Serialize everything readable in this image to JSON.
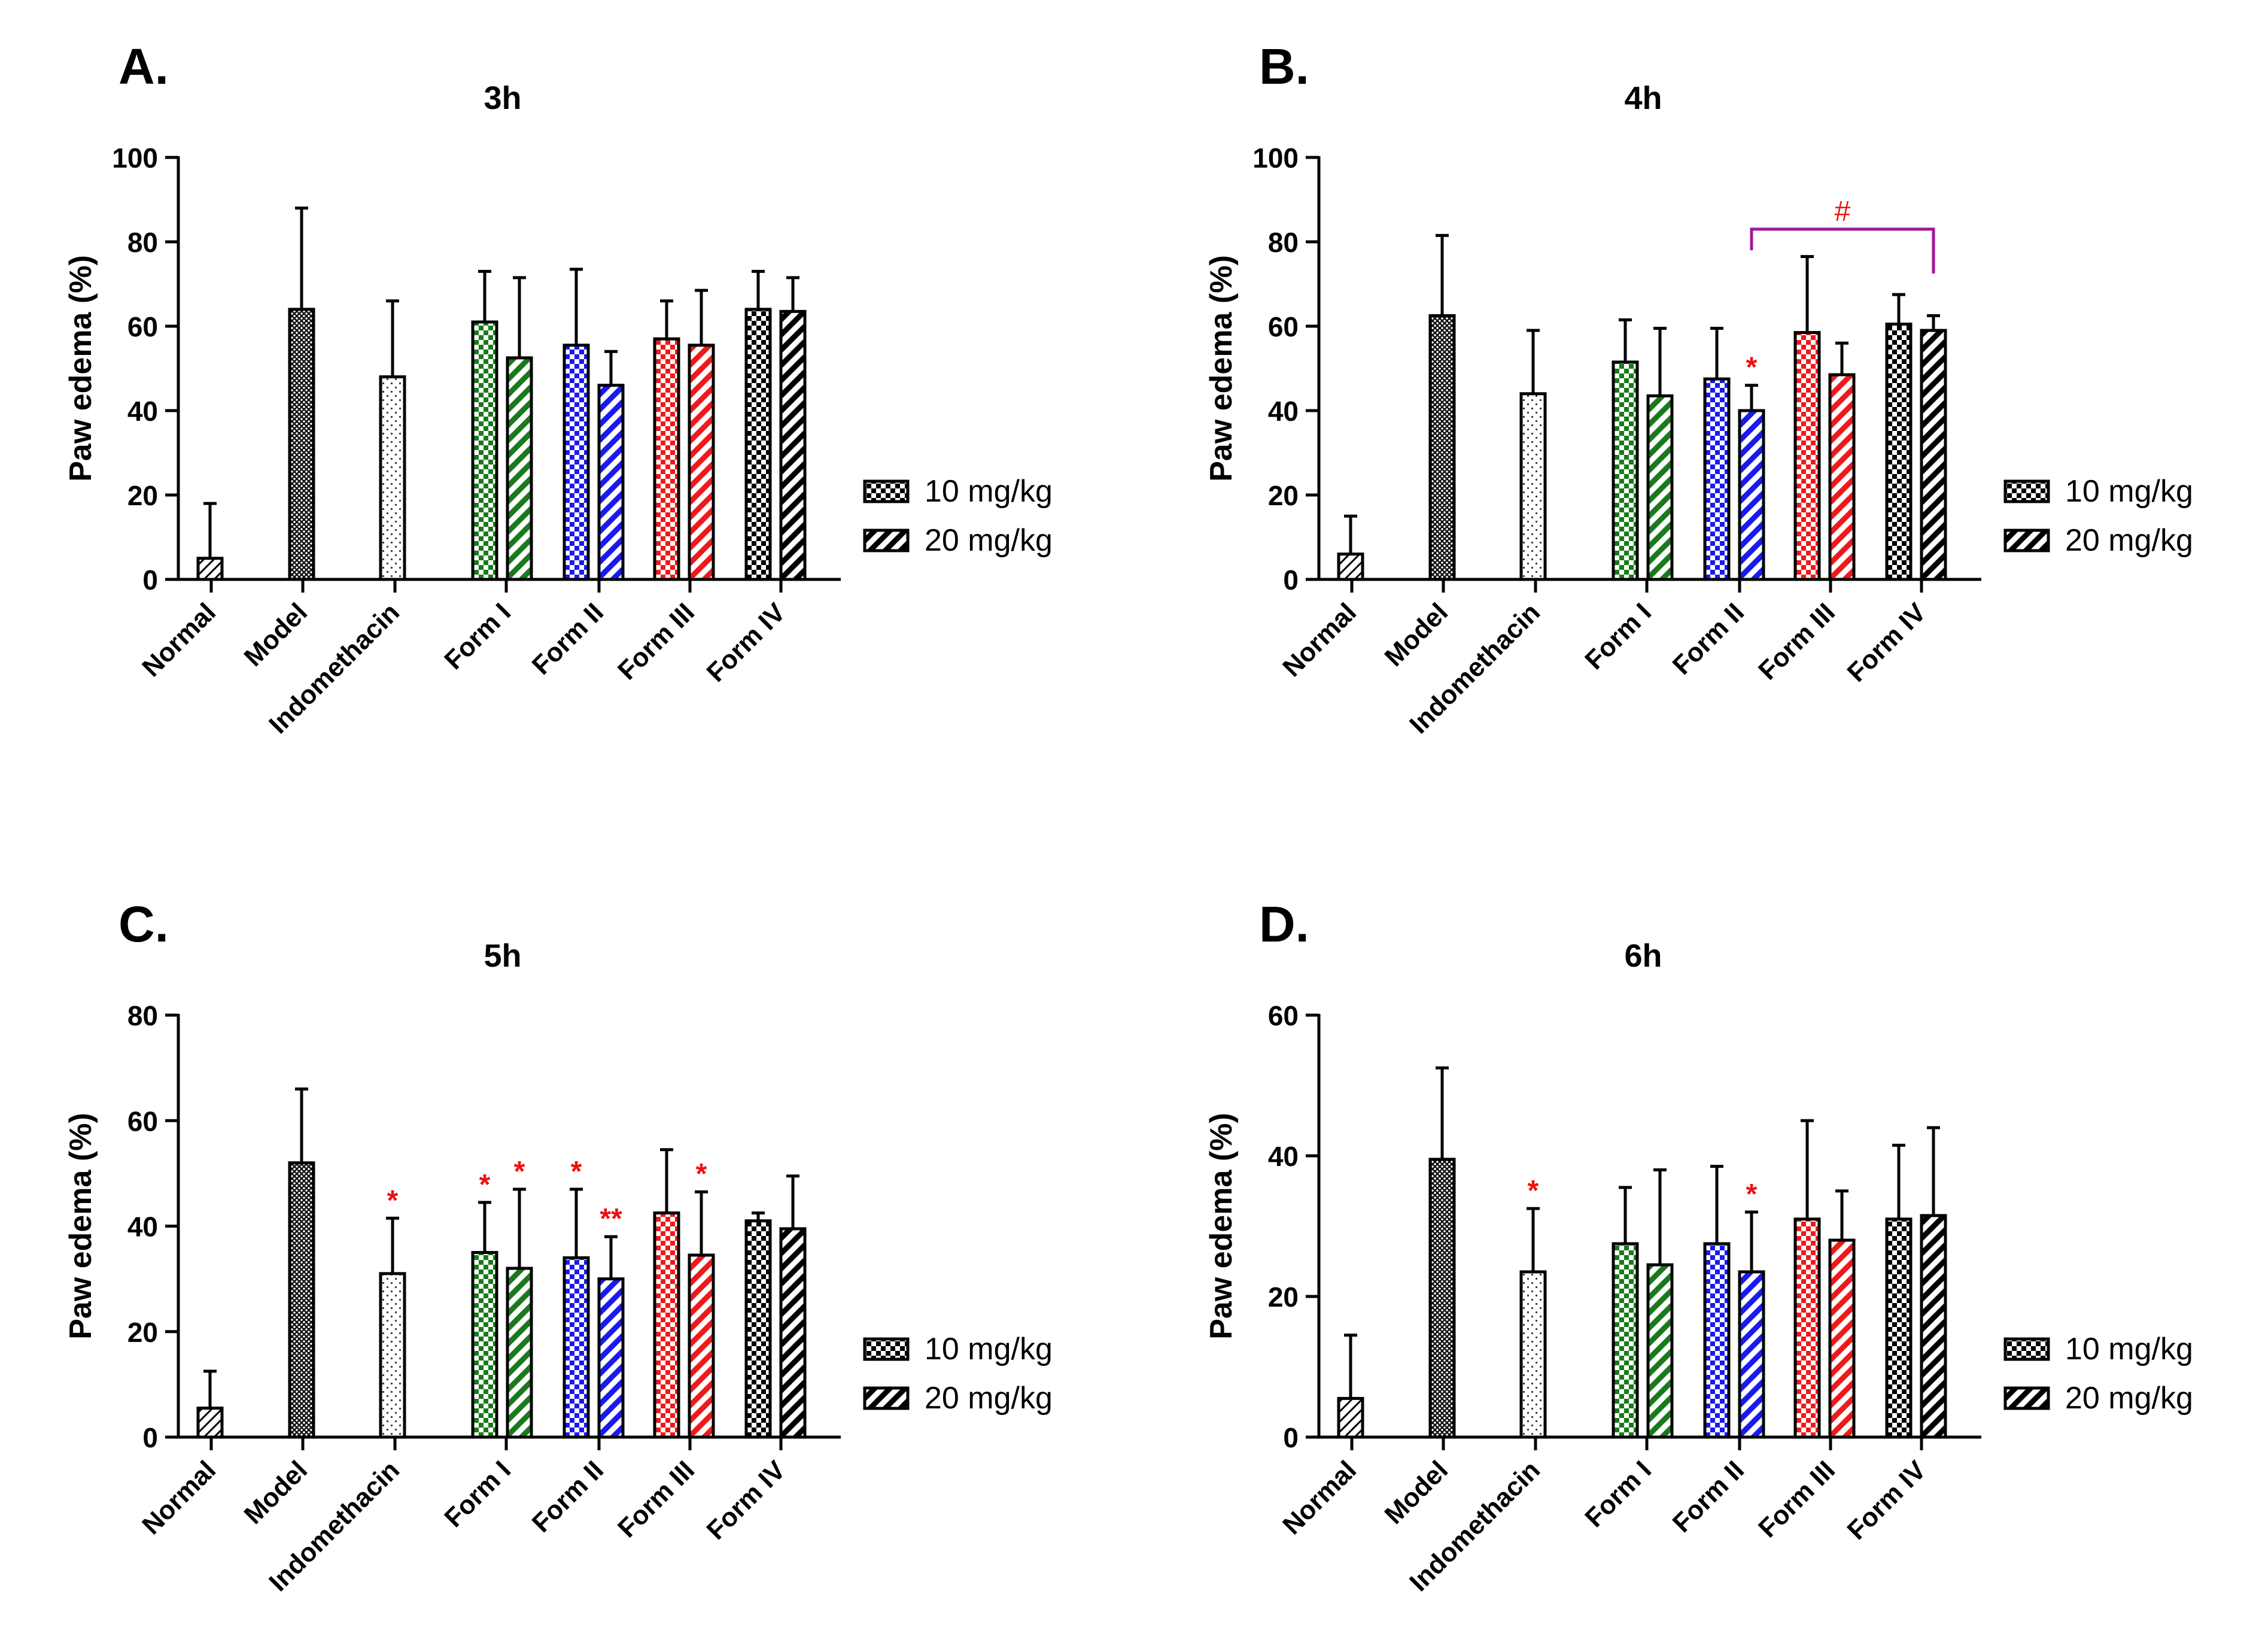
{
  "figure": {
    "groups": [
      "Normal",
      "Model",
      "Indomethacin",
      "Form I",
      "Form II",
      "Form III",
      "Form IV"
    ],
    "legend": {
      "dose1": "10 mg/kg",
      "dose2": "20 mg/kg"
    },
    "colors": {
      "Normal": "#000000",
      "Model": "#000000",
      "Indomethacin": "#000000",
      "Form I": "#1a7a1a",
      "Form II": "#1a1aee",
      "Form III": "#ee1a1a",
      "Form IV": "#000000",
      "significance": "#ee1111",
      "bracket": "#a0179a"
    }
  },
  "chart_data": [
    {
      "panel": "A.",
      "title": "3h",
      "type": "bar",
      "ylabel": "Paw edema (%)",
      "ylim": [
        0,
        100
      ],
      "yticks": [
        "0",
        "20",
        "40",
        "60",
        "80",
        "100"
      ],
      "bars": [
        {
          "group": "Normal",
          "series": "single",
          "value": 5,
          "error": 13,
          "mark": ""
        },
        {
          "group": "Model",
          "series": "single",
          "value": 64,
          "error": 24,
          "mark": ""
        },
        {
          "group": "Indomethacin",
          "series": "single",
          "value": 48,
          "error": 18,
          "mark": ""
        },
        {
          "group": "Form I",
          "series": "10 mg/kg",
          "value": 61,
          "error": 12,
          "mark": ""
        },
        {
          "group": "Form I",
          "series": "20 mg/kg",
          "value": 52.5,
          "error": 19,
          "mark": ""
        },
        {
          "group": "Form II",
          "series": "10 mg/kg",
          "value": 55.5,
          "error": 18,
          "mark": ""
        },
        {
          "group": "Form II",
          "series": "20 mg/kg",
          "value": 46,
          "error": 8,
          "mark": ""
        },
        {
          "group": "Form III",
          "series": "10 mg/kg",
          "value": 57,
          "error": 9,
          "mark": ""
        },
        {
          "group": "Form III",
          "series": "20 mg/kg",
          "value": 55.5,
          "error": 13,
          "mark": ""
        },
        {
          "group": "Form IV",
          "series": "10 mg/kg",
          "value": 64,
          "error": 9,
          "mark": ""
        },
        {
          "group": "Form IV",
          "series": "20 mg/kg",
          "value": 63.5,
          "error": 8,
          "mark": ""
        }
      ],
      "bracket": null
    },
    {
      "panel": "B.",
      "title": "4h",
      "type": "bar",
      "ylabel": "Paw edema (%)",
      "ylim": [
        0,
        100
      ],
      "yticks": [
        "0",
        "20",
        "40",
        "60",
        "80",
        "100"
      ],
      "bars": [
        {
          "group": "Normal",
          "series": "single",
          "value": 6,
          "error": 9,
          "mark": ""
        },
        {
          "group": "Model",
          "series": "single",
          "value": 62.5,
          "error": 19,
          "mark": ""
        },
        {
          "group": "Indomethacin",
          "series": "single",
          "value": 44,
          "error": 15,
          "mark": ""
        },
        {
          "group": "Form I",
          "series": "10 mg/kg",
          "value": 51.5,
          "error": 10,
          "mark": ""
        },
        {
          "group": "Form I",
          "series": "20 mg/kg",
          "value": 43.5,
          "error": 16,
          "mark": ""
        },
        {
          "group": "Form II",
          "series": "10 mg/kg",
          "value": 47.5,
          "error": 12,
          "mark": ""
        },
        {
          "group": "Form II",
          "series": "20 mg/kg",
          "value": 40,
          "error": 6,
          "mark": "*"
        },
        {
          "group": "Form III",
          "series": "10 mg/kg",
          "value": 58.5,
          "error": 18,
          "mark": ""
        },
        {
          "group": "Form III",
          "series": "20 mg/kg",
          "value": 48.5,
          "error": 7.5,
          "mark": ""
        },
        {
          "group": "Form IV",
          "series": "10 mg/kg",
          "value": 60.5,
          "error": 7,
          "mark": ""
        },
        {
          "group": "Form IV",
          "series": "20 mg/kg",
          "value": 59,
          "error": 3.5,
          "mark": ""
        }
      ],
      "bracket": {
        "from_bar": 6,
        "to_bar": 10,
        "level": 83,
        "label": "#"
      }
    },
    {
      "panel": "C.",
      "title": "5h",
      "type": "bar",
      "ylabel": "Paw edema (%)",
      "ylim": [
        0,
        80
      ],
      "yticks": [
        "0",
        "20",
        "40",
        "60",
        "80"
      ],
      "bars": [
        {
          "group": "Normal",
          "series": "single",
          "value": 5.5,
          "error": 7,
          "mark": ""
        },
        {
          "group": "Model",
          "series": "single",
          "value": 52,
          "error": 14,
          "mark": ""
        },
        {
          "group": "Indomethacin",
          "series": "single",
          "value": 31,
          "error": 10.5,
          "mark": "*"
        },
        {
          "group": "Form I",
          "series": "10 mg/kg",
          "value": 35,
          "error": 9.5,
          "mark": "*"
        },
        {
          "group": "Form I",
          "series": "20 mg/kg",
          "value": 32,
          "error": 15,
          "mark": "*"
        },
        {
          "group": "Form II",
          "series": "10 mg/kg",
          "value": 34,
          "error": 13,
          "mark": "*"
        },
        {
          "group": "Form II",
          "series": "20 mg/kg",
          "value": 30,
          "error": 8,
          "mark": "**"
        },
        {
          "group": "Form III",
          "series": "10 mg/kg",
          "value": 42.5,
          "error": 12,
          "mark": ""
        },
        {
          "group": "Form III",
          "series": "20 mg/kg",
          "value": 34.5,
          "error": 12,
          "mark": "*"
        },
        {
          "group": "Form IV",
          "series": "10 mg/kg",
          "value": 41,
          "error": 1.5,
          "mark": ""
        },
        {
          "group": "Form IV",
          "series": "20 mg/kg",
          "value": 39.5,
          "error": 10,
          "mark": ""
        }
      ],
      "bracket": null
    },
    {
      "panel": "D.",
      "title": "6h",
      "type": "bar",
      "ylabel": "Paw edema (%)",
      "ylim": [
        0,
        60
      ],
      "yticks": [
        "0",
        "20",
        "40",
        "60"
      ],
      "bars": [
        {
          "group": "Normal",
          "series": "single",
          "value": 5.5,
          "error": 9,
          "mark": ""
        },
        {
          "group": "Model",
          "series": "single",
          "value": 39.5,
          "error": 13,
          "mark": ""
        },
        {
          "group": "Indomethacin",
          "series": "single",
          "value": 23.5,
          "error": 9,
          "mark": "*"
        },
        {
          "group": "Form I",
          "series": "10 mg/kg",
          "value": 27.5,
          "error": 8,
          "mark": ""
        },
        {
          "group": "Form I",
          "series": "20 mg/kg",
          "value": 24.5,
          "error": 13.5,
          "mark": ""
        },
        {
          "group": "Form II",
          "series": "10 mg/kg",
          "value": 27.5,
          "error": 11,
          "mark": ""
        },
        {
          "group": "Form II",
          "series": "20 mg/kg",
          "value": 23.5,
          "error": 8.5,
          "mark": "*"
        },
        {
          "group": "Form III",
          "series": "10 mg/kg",
          "value": 31,
          "error": 14,
          "mark": ""
        },
        {
          "group": "Form III",
          "series": "20 mg/kg",
          "value": 28,
          "error": 7,
          "mark": ""
        },
        {
          "group": "Form IV",
          "series": "10 mg/kg",
          "value": 31,
          "error": 10.5,
          "mark": ""
        },
        {
          "group": "Form IV",
          "series": "20 mg/kg",
          "value": 31.5,
          "error": 12.5,
          "mark": ""
        }
      ],
      "bracket": null
    }
  ]
}
